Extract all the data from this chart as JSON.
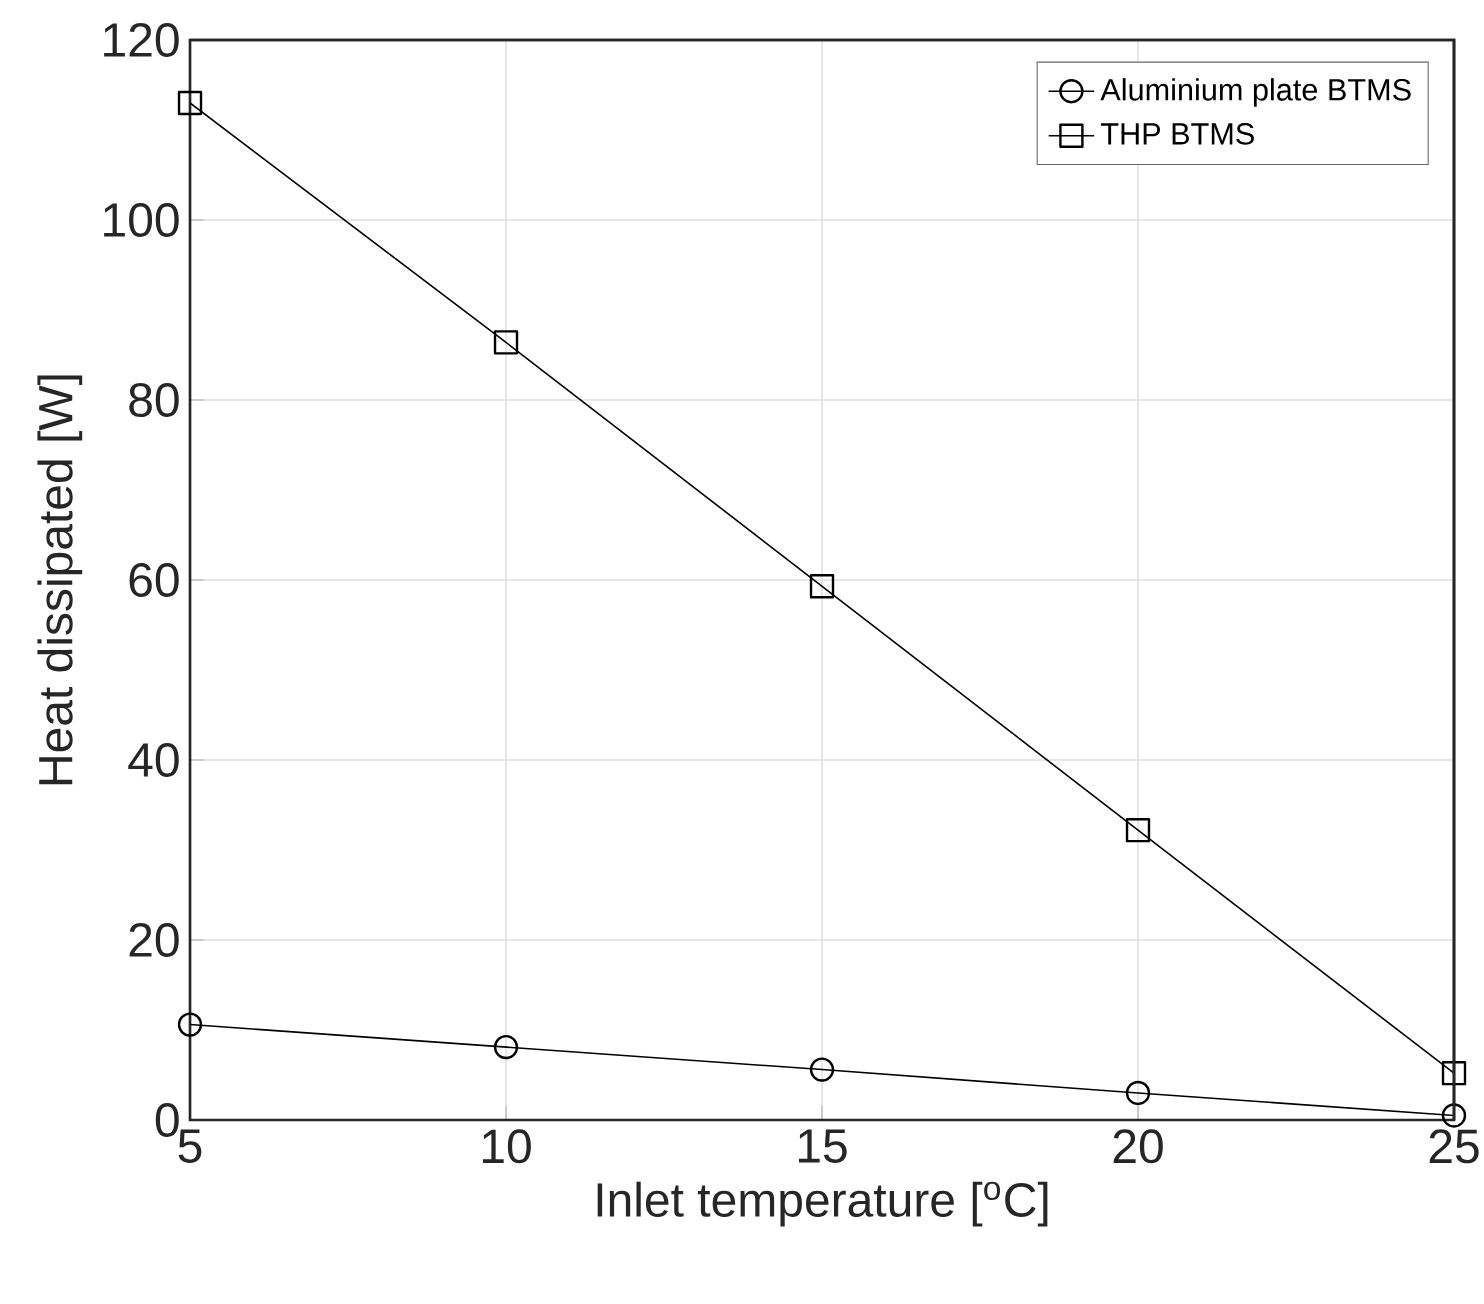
{
  "chart_data": {
    "type": "line",
    "xlabel": "Inlet temperature [$^{o}$C]",
    "ylabel": "Heat dissipated [W]",
    "x": [
      5,
      10,
      15,
      20,
      25
    ],
    "series": [
      {
        "name": "Aluminium plate BTMS",
        "color": "#000000",
        "marker": "circle",
        "values": [
          10.6,
          8.1,
          5.6,
          3.0,
          0.5
        ]
      },
      {
        "name": "THP BTMS",
        "color": "#000000",
        "marker": "square",
        "values": [
          113,
          86.4,
          59.3,
          32.2,
          5.2
        ]
      }
    ],
    "xlim": [
      5,
      25
    ],
    "xticks": [
      5,
      10,
      15,
      20,
      25
    ],
    "ylim": [
      0,
      120
    ],
    "yticks": [
      0,
      20,
      40,
      60,
      80,
      100,
      120
    ],
    "grid": true,
    "legend": "top right",
    "line_style": "solid"
  }
}
